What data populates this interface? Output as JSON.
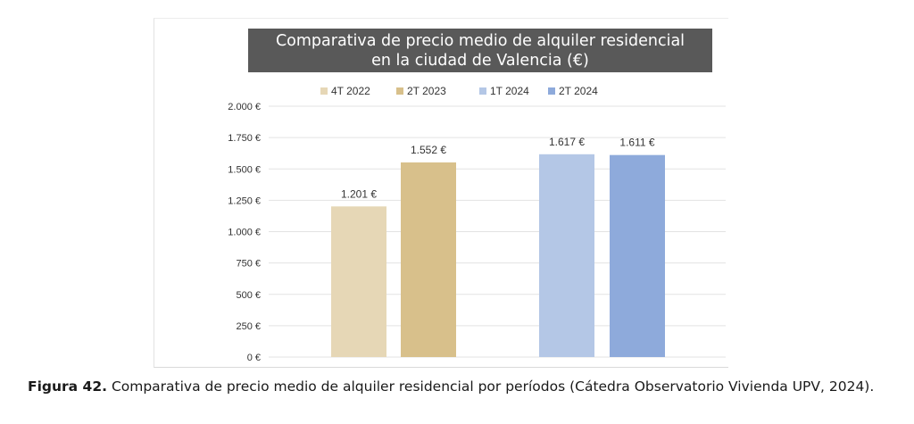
{
  "chart_data": {
    "type": "bar",
    "title": "Comparativa de precio medio de alquiler residencial en la ciudad de Valencia (€)",
    "title_lines": [
      "Comparativa de precio medio de alquiler residencial",
      "en la ciudad de Valencia (€)"
    ],
    "series": [
      {
        "name": "4T 2022",
        "value": 1201,
        "label": "1.201 €",
        "color": "#e6d7b6"
      },
      {
        "name": "2T 2023",
        "value": 1552,
        "label": "1.552 €",
        "color": "#d8c08b"
      },
      {
        "name": "1T 2024",
        "value": 1617,
        "label": "1.617 €",
        "color": "#b4c7e6"
      },
      {
        "name": "2T 2024",
        "value": 1611,
        "label": "1.611 €",
        "color": "#8eaadb"
      }
    ],
    "yticks": [
      {
        "value": 0,
        "label": "0 €"
      },
      {
        "value": 250,
        "label": "250 €"
      },
      {
        "value": 500,
        "label": "500 €"
      },
      {
        "value": 750,
        "label": "750 €"
      },
      {
        "value": 1000,
        "label": "1.000 €"
      },
      {
        "value": 1250,
        "label": "1.250 €"
      },
      {
        "value": 1500,
        "label": "1.500 €"
      },
      {
        "value": 1750,
        "label": "1.750 €"
      },
      {
        "value": 2000,
        "label": "2.000 €"
      }
    ],
    "ylim": [
      0,
      2000
    ],
    "grid": true,
    "legend_position": "top",
    "title_background": "#595959",
    "title_color": "#ffffff"
  },
  "caption": {
    "label": "Figura 42.",
    "text": "Comparativa de precio medio de alquiler residencial por períodos (Cátedra Observatorio Vivienda UPV, 2024)."
  }
}
